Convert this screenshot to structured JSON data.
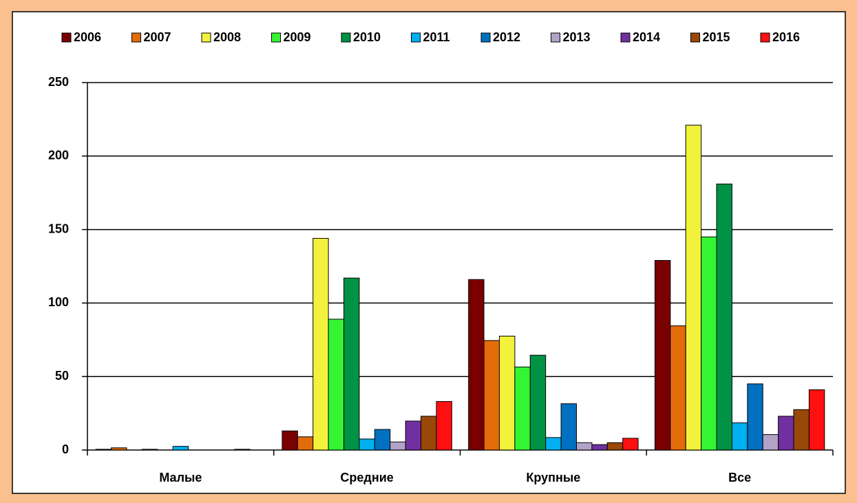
{
  "chart_data": {
    "type": "bar",
    "categories": [
      "Малые",
      "Средние",
      "Крупные",
      "Все"
    ],
    "series": [
      {
        "name": "2006",
        "color": "#7a0000",
        "values": [
          0.5,
          13,
          116,
          129
        ]
      },
      {
        "name": "2007",
        "color": "#e36c0a",
        "values": [
          1.5,
          9,
          74.5,
          84.5
        ]
      },
      {
        "name": "2008",
        "color": "#f2f23c",
        "values": [
          0,
          144,
          77.5,
          221
        ]
      },
      {
        "name": "2009",
        "color": "#33f533",
        "values": [
          0.5,
          89,
          56.5,
          145
        ]
      },
      {
        "name": "2010",
        "color": "#009245",
        "values": [
          0,
          117,
          64.5,
          181
        ]
      },
      {
        "name": "2011",
        "color": "#00b0f0",
        "values": [
          2.5,
          7.5,
          8.5,
          18.5
        ]
      },
      {
        "name": "2012",
        "color": "#0070c0",
        "values": [
          0,
          14,
          31.5,
          45
        ]
      },
      {
        "name": "2013",
        "color": "#b3a2c7",
        "values": [
          0,
          5.5,
          5,
          10.5
        ]
      },
      {
        "name": "2014",
        "color": "#7030a0",
        "values": [
          0,
          19.7,
          3.7,
          23
        ]
      },
      {
        "name": "2015",
        "color": "#984807",
        "values": [
          0.5,
          23,
          5,
          27.5
        ]
      },
      {
        "name": "2016",
        "color": "#ff1010",
        "values": [
          0,
          33,
          8,
          41
        ]
      }
    ],
    "ylim": [
      0,
      250
    ],
    "yticks": [
      0,
      50,
      100,
      150,
      200,
      250
    ],
    "grid": true,
    "legend": "top"
  }
}
